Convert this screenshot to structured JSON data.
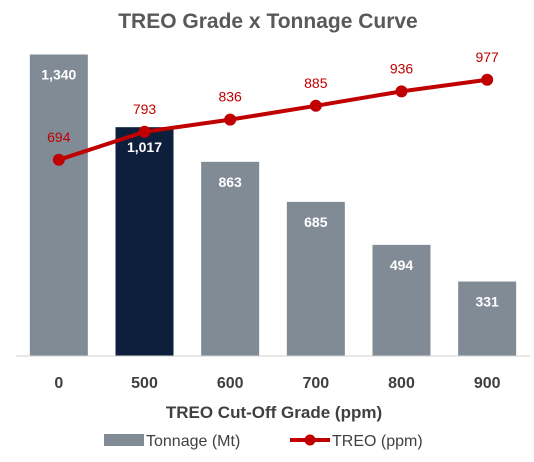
{
  "chart_data": {
    "type": "bar",
    "title": "TREO Grade x Tonnage Curve",
    "xlabel": "TREO Cut-Off Grade (ppm)",
    "categories": [
      "0",
      "500",
      "600",
      "700",
      "800",
      "900"
    ],
    "highlight_index": 1,
    "series": [
      {
        "name": "Tonnage (Mt)",
        "type": "bar",
        "values": [
          1340,
          1017,
          863,
          685,
          494,
          331
        ],
        "labels": [
          "1,340",
          "1,017",
          "863",
          "685",
          "494",
          "331"
        ],
        "color": "#808b96",
        "highlight_color": "#0d1f3d"
      },
      {
        "name": "TREO (ppm)",
        "type": "line",
        "values": [
          694,
          793,
          836,
          885,
          936,
          977
        ],
        "labels": [
          "694",
          "793",
          "836",
          "885",
          "936",
          "977"
        ],
        "color": "#c00000"
      }
    ],
    "bar_axis_range": [
      0,
      1440
    ],
    "line_axis_range": [
      0,
      1146
    ],
    "grid": false,
    "legend_position": "bottom"
  }
}
